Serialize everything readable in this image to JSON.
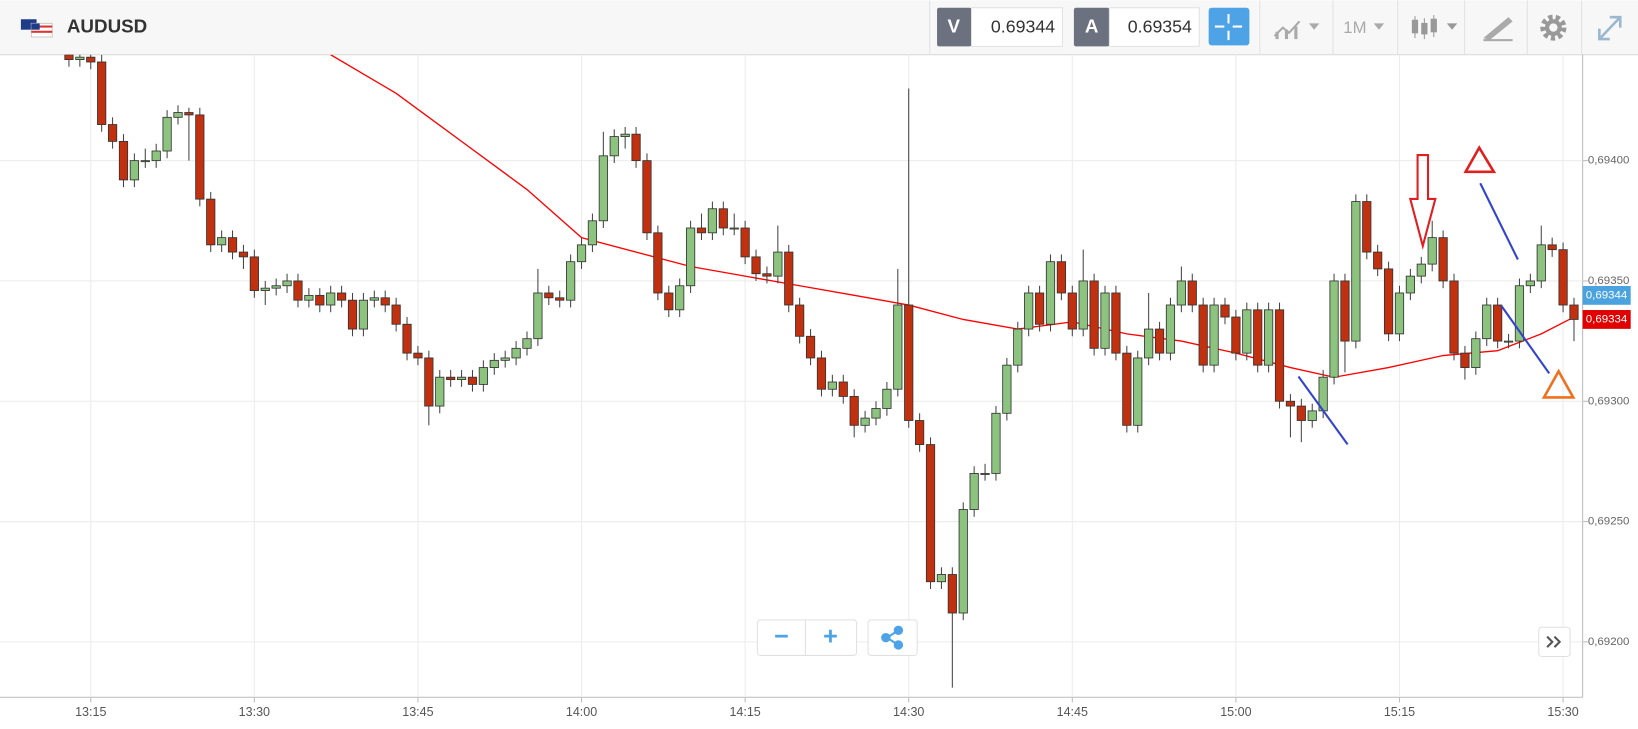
{
  "toolbar": {
    "symbol": "AUDUSD",
    "sell_label": "V",
    "sell_price": 0.69344,
    "buy_label": "A",
    "buy_price": 0.69354,
    "timeframe": "1M"
  },
  "zoom": {
    "out": "−",
    "in": "+"
  },
  "chart_data": {
    "type": "candlestick",
    "up_color": "#8cc47f",
    "down_color": "#c1300f",
    "grid": true,
    "ylim": [
      0.69177,
      0.69444
    ],
    "yticks": [
      {
        "value": 0.692,
        "label": "0,69200"
      },
      {
        "value": 0.6925,
        "label": "0,69250"
      },
      {
        "value": 0.693,
        "label": "0,69300"
      },
      {
        "value": 0.6935,
        "label": "0,69350"
      },
      {
        "value": 0.694,
        "label": "0,69400"
      }
    ],
    "xticks": [
      "13:15",
      "13:30",
      "13:45",
      "14:00",
      "14:15",
      "14:30",
      "14:45",
      "15:00",
      "15:15",
      "15:30"
    ],
    "price_tags": [
      {
        "value": 0.69344,
        "label": "0,69344",
        "color": "#4aa3df"
      },
      {
        "value": 0.69334,
        "label": "0,69334",
        "color": "#e00000"
      }
    ],
    "moving_average": {
      "color": "#ff0000",
      "x": [
        24,
        30,
        36,
        42,
        47,
        52,
        57,
        62,
        67,
        72,
        77,
        82,
        87,
        92,
        97,
        102,
        107,
        112,
        116,
        121,
        126,
        131,
        135,
        138
      ],
      "values": [
        0.69444,
        0.69428,
        0.69408,
        0.69388,
        0.69368,
        0.69362,
        0.69356,
        0.69352,
        0.69348,
        0.69344,
        0.6934,
        0.69334,
        0.6933,
        0.69333,
        0.69328,
        0.69325,
        0.6932,
        0.69314,
        0.6931,
        0.69314,
        0.69319,
        0.69321,
        0.69328,
        0.69335
      ]
    },
    "candles": [
      [
        0.69444,
        0.69447,
        0.69439,
        0.69442
      ],
      [
        0.69442,
        0.69446,
        0.69439,
        0.69443
      ],
      [
        0.69443,
        0.69446,
        0.69438,
        0.69441
      ],
      [
        0.69441,
        0.69444,
        0.69412,
        0.69415
      ],
      [
        0.69415,
        0.69418,
        0.69405,
        0.69408
      ],
      [
        0.69408,
        0.69411,
        0.69389,
        0.69392
      ],
      [
        0.69392,
        0.69403,
        0.69389,
        0.694
      ],
      [
        0.694,
        0.69405,
        0.69397,
        0.694
      ],
      [
        0.694,
        0.69407,
        0.69397,
        0.69404
      ],
      [
        0.69404,
        0.69421,
        0.69401,
        0.69418
      ],
      [
        0.69418,
        0.69423,
        0.69415,
        0.6942
      ],
      [
        0.6942,
        0.69422,
        0.694,
        0.69419
      ],
      [
        0.69419,
        0.69422,
        0.69381,
        0.69384
      ],
      [
        0.69384,
        0.69387,
        0.69362,
        0.69365
      ],
      [
        0.69365,
        0.69371,
        0.69362,
        0.69368
      ],
      [
        0.69368,
        0.69371,
        0.69359,
        0.69362
      ],
      [
        0.69362,
        0.69365,
        0.69355,
        0.6936
      ],
      [
        0.6936,
        0.69363,
        0.69343,
        0.69346
      ],
      [
        0.69346,
        0.6935,
        0.6934,
        0.69347
      ],
      [
        0.69347,
        0.69351,
        0.69344,
        0.69348
      ],
      [
        0.69348,
        0.69353,
        0.69345,
        0.6935
      ],
      [
        0.6935,
        0.69353,
        0.69339,
        0.69342
      ],
      [
        0.69342,
        0.69347,
        0.69339,
        0.69344
      ],
      [
        0.69344,
        0.69347,
        0.69337,
        0.6934
      ],
      [
        0.6934,
        0.69348,
        0.69337,
        0.69345
      ],
      [
        0.69345,
        0.69348,
        0.69339,
        0.69342
      ],
      [
        0.69342,
        0.69345,
        0.69327,
        0.6933
      ],
      [
        0.6933,
        0.69345,
        0.69327,
        0.69342
      ],
      [
        0.69342,
        0.69346,
        0.69339,
        0.69343
      ],
      [
        0.69343,
        0.69346,
        0.69337,
        0.6934
      ],
      [
        0.6934,
        0.69343,
        0.69329,
        0.69332
      ],
      [
        0.69332,
        0.69335,
        0.69317,
        0.6932
      ],
      [
        0.6932,
        0.69323,
        0.69315,
        0.69318
      ],
      [
        0.69318,
        0.69321,
        0.6929,
        0.69298
      ],
      [
        0.69298,
        0.69313,
        0.69295,
        0.6931
      ],
      [
        0.6931,
        0.69313,
        0.69306,
        0.69309
      ],
      [
        0.69309,
        0.69313,
        0.69306,
        0.6931
      ],
      [
        0.6931,
        0.69313,
        0.69304,
        0.69307
      ],
      [
        0.69307,
        0.69317,
        0.69304,
        0.69314
      ],
      [
        0.69314,
        0.6932,
        0.69311,
        0.69317
      ],
      [
        0.69317,
        0.69321,
        0.69314,
        0.69318
      ],
      [
        0.69318,
        0.69325,
        0.69315,
        0.69322
      ],
      [
        0.69322,
        0.69329,
        0.69319,
        0.69326
      ],
      [
        0.69326,
        0.69355,
        0.69323,
        0.69345
      ],
      [
        0.69345,
        0.69348,
        0.6934,
        0.69343
      ],
      [
        0.69343,
        0.69346,
        0.69339,
        0.69342
      ],
      [
        0.69342,
        0.69361,
        0.69339,
        0.69358
      ],
      [
        0.69358,
        0.69368,
        0.69355,
        0.69365
      ],
      [
        0.69365,
        0.69378,
        0.69362,
        0.69375
      ],
      [
        0.69375,
        0.69412,
        0.69372,
        0.69402
      ],
      [
        0.69402,
        0.69413,
        0.69399,
        0.6941
      ],
      [
        0.6941,
        0.69414,
        0.69405,
        0.69411
      ],
      [
        0.69411,
        0.69414,
        0.69397,
        0.694
      ],
      [
        0.694,
        0.69403,
        0.69367,
        0.6937
      ],
      [
        0.6937,
        0.69373,
        0.69342,
        0.69345
      ],
      [
        0.69345,
        0.69348,
        0.69335,
        0.69338
      ],
      [
        0.69338,
        0.69351,
        0.69335,
        0.69348
      ],
      [
        0.69348,
        0.69375,
        0.69345,
        0.69372
      ],
      [
        0.69372,
        0.69378,
        0.69367,
        0.6937
      ],
      [
        0.6937,
        0.69383,
        0.69367,
        0.6938
      ],
      [
        0.6938,
        0.69383,
        0.69369,
        0.69372
      ],
      [
        0.69372,
        0.69378,
        0.69369,
        0.69372
      ],
      [
        0.69372,
        0.69375,
        0.69357,
        0.6936
      ],
      [
        0.6936,
        0.69363,
        0.6935,
        0.69353
      ],
      [
        0.69353,
        0.69356,
        0.69349,
        0.69352
      ],
      [
        0.69352,
        0.69373,
        0.69349,
        0.69362
      ],
      [
        0.69362,
        0.69365,
        0.69337,
        0.6934
      ],
      [
        0.6934,
        0.69343,
        0.69324,
        0.69327
      ],
      [
        0.69327,
        0.6933,
        0.69315,
        0.69318
      ],
      [
        0.69318,
        0.69321,
        0.69302,
        0.69305
      ],
      [
        0.69305,
        0.69311,
        0.69302,
        0.69308
      ],
      [
        0.69308,
        0.69311,
        0.69299,
        0.69302
      ],
      [
        0.69302,
        0.69305,
        0.69285,
        0.6929
      ],
      [
        0.6929,
        0.69296,
        0.69287,
        0.69293
      ],
      [
        0.69293,
        0.693,
        0.6929,
        0.69297
      ],
      [
        0.69297,
        0.69308,
        0.69294,
        0.69305
      ],
      [
        0.69305,
        0.69355,
        0.69302,
        0.6934
      ],
      [
        0.6934,
        0.6943,
        0.69289,
        0.69292
      ],
      [
        0.69292,
        0.69295,
        0.69279,
        0.69282
      ],
      [
        0.69282,
        0.69285,
        0.69222,
        0.69225
      ],
      [
        0.69225,
        0.69231,
        0.69222,
        0.69228
      ],
      [
        0.69228,
        0.69231,
        0.69181,
        0.69212
      ],
      [
        0.69212,
        0.69258,
        0.69209,
        0.69255
      ],
      [
        0.69255,
        0.69273,
        0.69252,
        0.6927
      ],
      [
        0.6927,
        0.69274,
        0.69267,
        0.6927
      ],
      [
        0.6927,
        0.69298,
        0.69267,
        0.69295
      ],
      [
        0.69295,
        0.69318,
        0.69292,
        0.69315
      ],
      [
        0.69315,
        0.69333,
        0.69312,
        0.6933
      ],
      [
        0.6933,
        0.69348,
        0.69327,
        0.69345
      ],
      [
        0.69345,
        0.69348,
        0.69329,
        0.69332
      ],
      [
        0.69332,
        0.69361,
        0.69329,
        0.69358
      ],
      [
        0.69358,
        0.69361,
        0.69342,
        0.69345
      ],
      [
        0.69345,
        0.69348,
        0.69327,
        0.6933
      ],
      [
        0.6933,
        0.69363,
        0.69327,
        0.6935
      ],
      [
        0.6935,
        0.69353,
        0.69319,
        0.69322
      ],
      [
        0.69322,
        0.69348,
        0.69319,
        0.69345
      ],
      [
        0.69345,
        0.69348,
        0.69317,
        0.6932
      ],
      [
        0.6932,
        0.69323,
        0.69287,
        0.6929
      ],
      [
        0.6929,
        0.69321,
        0.69287,
        0.69318
      ],
      [
        0.69318,
        0.69345,
        0.69315,
        0.6933
      ],
      [
        0.6933,
        0.69333,
        0.69317,
        0.6932
      ],
      [
        0.6932,
        0.69343,
        0.69317,
        0.6934
      ],
      [
        0.6934,
        0.69356,
        0.69337,
        0.6935
      ],
      [
        0.6935,
        0.69353,
        0.69337,
        0.6934
      ],
      [
        0.6934,
        0.69343,
        0.69312,
        0.69315
      ],
      [
        0.69315,
        0.69343,
        0.69312,
        0.6934
      ],
      [
        0.6934,
        0.69343,
        0.69332,
        0.69335
      ],
      [
        0.69335,
        0.69338,
        0.69317,
        0.6932
      ],
      [
        0.6932,
        0.69341,
        0.69317,
        0.69338
      ],
      [
        0.69338,
        0.69341,
        0.69312,
        0.69315
      ],
      [
        0.69315,
        0.69341,
        0.69312,
        0.69338
      ],
      [
        0.69338,
        0.69341,
        0.69297,
        0.693
      ],
      [
        0.693,
        0.69303,
        0.69285,
        0.69298
      ],
      [
        0.69298,
        0.69301,
        0.69283,
        0.69292
      ],
      [
        0.69292,
        0.69299,
        0.69289,
        0.69296
      ],
      [
        0.69296,
        0.69313,
        0.69293,
        0.6931
      ],
      [
        0.6931,
        0.69353,
        0.69307,
        0.6935
      ],
      [
        0.6935,
        0.69353,
        0.69312,
        0.69325
      ],
      [
        0.69325,
        0.69386,
        0.69322,
        0.69383
      ],
      [
        0.69383,
        0.69386,
        0.69359,
        0.69362
      ],
      [
        0.69362,
        0.69365,
        0.69352,
        0.69355
      ],
      [
        0.69355,
        0.69358,
        0.69325,
        0.69328
      ],
      [
        0.69328,
        0.69348,
        0.69325,
        0.69345
      ],
      [
        0.69345,
        0.69355,
        0.69342,
        0.69352
      ],
      [
        0.69352,
        0.6936,
        0.69349,
        0.69357
      ],
      [
        0.69357,
        0.69375,
        0.69354,
        0.69368
      ],
      [
        0.69368,
        0.69371,
        0.69347,
        0.6935
      ],
      [
        0.6935,
        0.69353,
        0.69317,
        0.6932
      ],
      [
        0.6932,
        0.69323,
        0.69309,
        0.69314
      ],
      [
        0.69314,
        0.69329,
        0.69311,
        0.69326
      ],
      [
        0.69326,
        0.69343,
        0.69323,
        0.6934
      ],
      [
        0.6934,
        0.69343,
        0.69322,
        0.69325
      ],
      [
        0.69325,
        0.69328,
        0.69322,
        0.69325
      ],
      [
        0.69325,
        0.69351,
        0.69322,
        0.69348
      ],
      [
        0.69348,
        0.69353,
        0.69345,
        0.6935
      ],
      [
        0.6935,
        0.69373,
        0.69347,
        0.69365
      ],
      [
        0.69365,
        0.69368,
        0.6936,
        0.69363
      ],
      [
        0.69363,
        0.69366,
        0.69337,
        0.6934
      ],
      [
        0.6934,
        0.69343,
        0.69325,
        0.69334
      ]
    ]
  }
}
